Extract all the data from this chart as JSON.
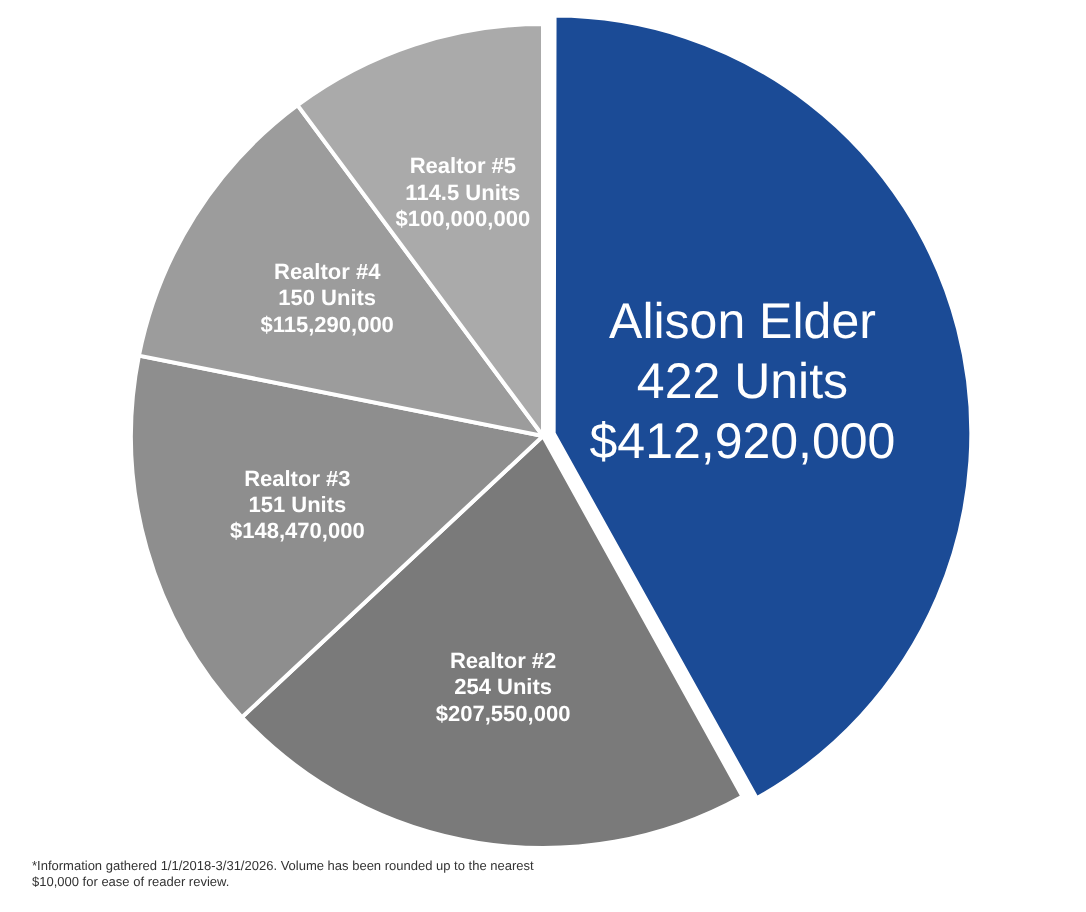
{
  "chart_data": {
    "type": "pie",
    "categories": [
      "Alison Elder",
      "Realtor #2",
      "Realtor #3",
      "Realtor #4",
      "Realtor #5"
    ],
    "values": [
      412920000,
      207550000,
      148470000,
      115290000,
      100000000
    ],
    "value_labels": [
      "422 Units\n$412,920,000",
      "254 Units\n$207,550,000",
      "151 Units\n$148,470,000",
      "150 Units\n$115,290,000",
      "114.5 Units\n$100,000,000"
    ],
    "colors": [
      "#1b4b96",
      "#7a7a7a",
      "#8e8e8e",
      "#9c9c9c",
      "#aaaaaa"
    ],
    "legend": false,
    "annotations": [
      "*Information gathered 1/1/2018-3/31/2026. Volume has been rounded up to the nearest $10,000 for ease of reader review."
    ]
  }
}
